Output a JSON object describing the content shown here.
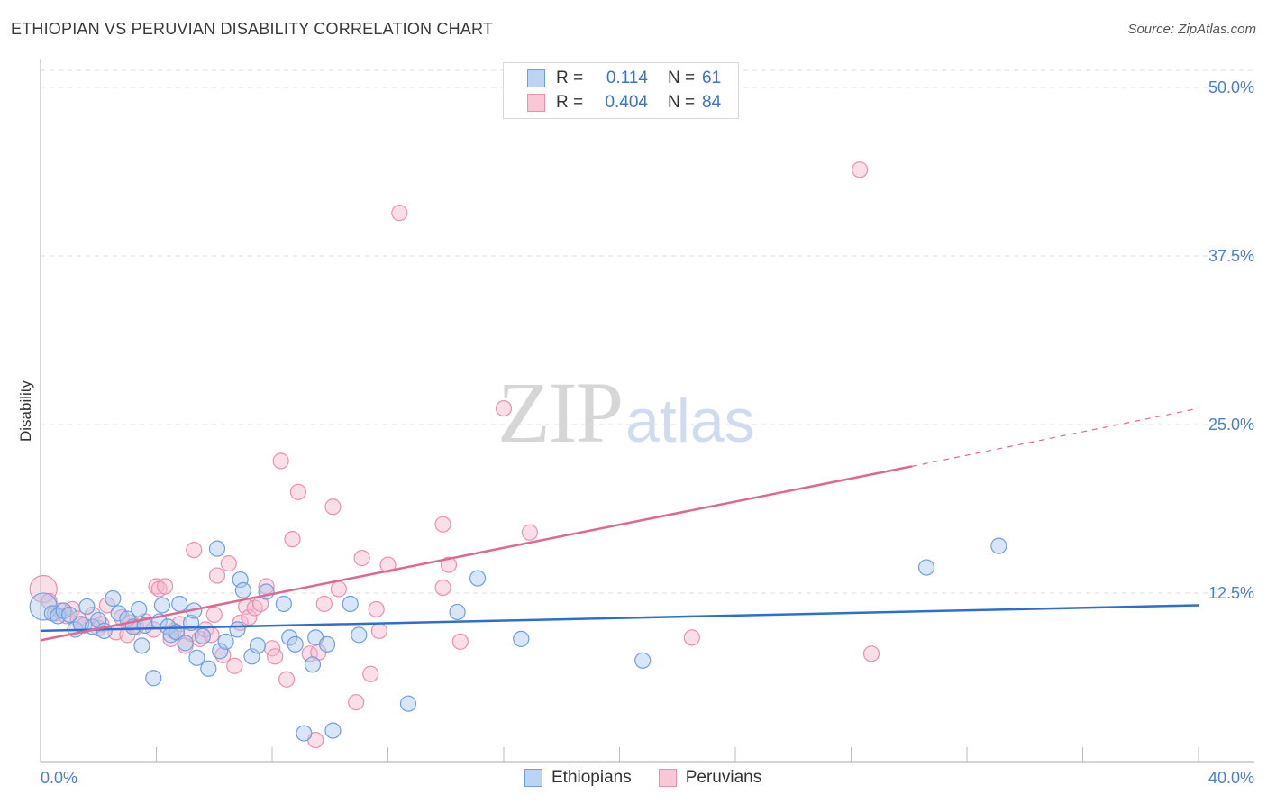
{
  "header": {
    "title": "ETHIOPIAN VS PERUVIAN DISABILITY CORRELATION CHART",
    "source": "Source: ZipAtlas.com"
  },
  "watermark": {
    "zip": "ZIP",
    "atlas": "atlas"
  },
  "legend": {
    "rows": [
      {
        "r_label": "R =",
        "r_value": "0.114",
        "n_label": "N =",
        "n_value": "61"
      },
      {
        "r_label": "R =",
        "r_value": "0.404",
        "n_label": "N =",
        "n_value": "84"
      }
    ]
  },
  "bottom_legend": {
    "items": [
      "Ethiopians",
      "Peruvians"
    ]
  },
  "colors": {
    "blue_fill": "#a9c8f0",
    "blue_stroke": "#6f9fdc",
    "blue_line": "#2d6fcf",
    "pink_fill": "#f7b8cb",
    "pink_stroke": "#ec8fae",
    "pink_line": "#e0678f",
    "tick_text": "#4a7fd0",
    "grid": "#dddddd"
  },
  "chart_data": {
    "type": "scatter",
    "title": "ETHIOPIAN VS PERUVIAN DISABILITY CORRELATION CHART",
    "xlabel": "",
    "ylabel": "Disability",
    "xlim": [
      0,
      40
    ],
    "ylim": [
      0,
      50
    ],
    "x_tick_labels": [
      {
        "value": 0,
        "label": "0.0%"
      },
      {
        "value": 40,
        "label": "40.0%"
      }
    ],
    "y_tick_labels": [
      {
        "value": 12.5,
        "label": "12.5%"
      },
      {
        "value": 25,
        "label": "25.0%"
      },
      {
        "value": 37.5,
        "label": "37.5%"
      },
      {
        "value": 50,
        "label": "50.0%"
      }
    ],
    "grid": "horizontal dashed",
    "legend_position": "top-center",
    "series": [
      {
        "name": "Ethiopians",
        "color": "blue",
        "r": 0.114,
        "n": 61,
        "trend": {
          "x": [
            0,
            40
          ],
          "y": [
            9.7,
            11.6
          ]
        },
        "points": [
          [
            0.1,
            11.5
          ],
          [
            0.4,
            11.0
          ],
          [
            0.6,
            10.8
          ],
          [
            0.8,
            11.2
          ],
          [
            1.0,
            10.9
          ],
          [
            1.2,
            9.8
          ],
          [
            1.4,
            10.2
          ],
          [
            1.6,
            11.5
          ],
          [
            1.8,
            10.0
          ],
          [
            2.0,
            10.5
          ],
          [
            2.2,
            9.7
          ],
          [
            2.5,
            12.1
          ],
          [
            2.7,
            11.0
          ],
          [
            3.0,
            10.6
          ],
          [
            3.2,
            10.0
          ],
          [
            3.4,
            11.3
          ],
          [
            3.5,
            8.6
          ],
          [
            3.6,
            10.1
          ],
          [
            3.9,
            6.2
          ],
          [
            4.1,
            10.4
          ],
          [
            4.2,
            11.6
          ],
          [
            4.4,
            10.0
          ],
          [
            4.5,
            9.4
          ],
          [
            4.7,
            9.6
          ],
          [
            4.8,
            11.7
          ],
          [
            5.0,
            8.8
          ],
          [
            5.2,
            10.3
          ],
          [
            5.3,
            11.2
          ],
          [
            5.4,
            7.7
          ],
          [
            5.6,
            9.3
          ],
          [
            5.8,
            6.9
          ],
          [
            6.1,
            15.8
          ],
          [
            6.2,
            8.2
          ],
          [
            6.4,
            8.9
          ],
          [
            6.8,
            9.8
          ],
          [
            6.9,
            13.5
          ],
          [
            7.0,
            12.7
          ],
          [
            7.3,
            7.8
          ],
          [
            7.5,
            8.6
          ],
          [
            7.8,
            12.6
          ],
          [
            8.4,
            11.7
          ],
          [
            8.6,
            9.2
          ],
          [
            8.8,
            8.7
          ],
          [
            9.1,
            2.1
          ],
          [
            9.4,
            7.2
          ],
          [
            9.5,
            9.2
          ],
          [
            9.9,
            8.7
          ],
          [
            10.1,
            2.3
          ],
          [
            10.7,
            11.7
          ],
          [
            11.0,
            9.4
          ],
          [
            12.7,
            4.3
          ],
          [
            14.4,
            11.1
          ],
          [
            15.1,
            13.6
          ],
          [
            16.6,
            9.1
          ],
          [
            20.8,
            7.5
          ],
          [
            30.6,
            14.4
          ],
          [
            33.1,
            16.0
          ]
        ]
      },
      {
        "name": "Peruvians",
        "color": "pink",
        "r": 0.404,
        "n": 84,
        "trend": {
          "x": [
            0,
            30.1
          ],
          "y": [
            9.0,
            21.9
          ]
        },
        "trend_dashed_end": {
          "x": 40,
          "y": 26.2
        },
        "points": [
          [
            0.1,
            12.8
          ],
          [
            0.3,
            11.9
          ],
          [
            0.5,
            11.0
          ],
          [
            0.7,
            11.2
          ],
          [
            0.9,
            10.8
          ],
          [
            1.1,
            11.3
          ],
          [
            1.3,
            10.6
          ],
          [
            1.5,
            10.1
          ],
          [
            1.8,
            10.9
          ],
          [
            2.0,
            9.9
          ],
          [
            2.1,
            10.2
          ],
          [
            2.3,
            11.6
          ],
          [
            2.6,
            9.6
          ],
          [
            2.8,
            10.7
          ],
          [
            3.0,
            9.4
          ],
          [
            3.3,
            10.0
          ],
          [
            3.6,
            10.4
          ],
          [
            3.9,
            9.8
          ],
          [
            4.0,
            13.0
          ],
          [
            4.1,
            12.8
          ],
          [
            4.3,
            13.0
          ],
          [
            4.5,
            9.1
          ],
          [
            4.8,
            10.2
          ],
          [
            5.0,
            8.6
          ],
          [
            5.2,
            9.5
          ],
          [
            5.3,
            15.7
          ],
          [
            5.5,
            9.1
          ],
          [
            5.7,
            9.8
          ],
          [
            6.0,
            10.9
          ],
          [
            6.1,
            13.8
          ],
          [
            6.3,
            7.9
          ],
          [
            6.5,
            14.7
          ],
          [
            6.7,
            7.1
          ],
          [
            6.9,
            10.3
          ],
          [
            7.1,
            11.5
          ],
          [
            7.2,
            10.7
          ],
          [
            7.4,
            11.4
          ],
          [
            7.6,
            11.7
          ],
          [
            7.8,
            13.0
          ],
          [
            8.0,
            8.4
          ],
          [
            8.1,
            7.8
          ],
          [
            8.3,
            22.3
          ],
          [
            8.5,
            6.1
          ],
          [
            8.7,
            16.5
          ],
          [
            8.9,
            20.0
          ],
          [
            9.3,
            8.0
          ],
          [
            9.6,
            8.1
          ],
          [
            9.8,
            11.7
          ],
          [
            10.1,
            18.9
          ],
          [
            10.3,
            12.8
          ],
          [
            11.1,
            15.1
          ],
          [
            11.4,
            6.5
          ],
          [
            11.6,
            11.3
          ],
          [
            12.4,
            40.7
          ],
          [
            13.9,
            17.6
          ],
          [
            14.5,
            8.9
          ],
          [
            16.0,
            26.2
          ],
          [
            16.9,
            17.0
          ],
          [
            22.5,
            9.2
          ],
          [
            28.3,
            43.9
          ],
          [
            28.7,
            8.0
          ],
          [
            10.9,
            4.4
          ],
          [
            9.5,
            1.6
          ],
          [
            11.7,
            9.7
          ],
          [
            12.0,
            14.6
          ],
          [
            14.1,
            14.6
          ],
          [
            13.9,
            12.9
          ],
          [
            5.9,
            9.4
          ],
          [
            4.6,
            9.7
          ],
          [
            3.1,
            10.3
          ]
        ]
      }
    ]
  }
}
